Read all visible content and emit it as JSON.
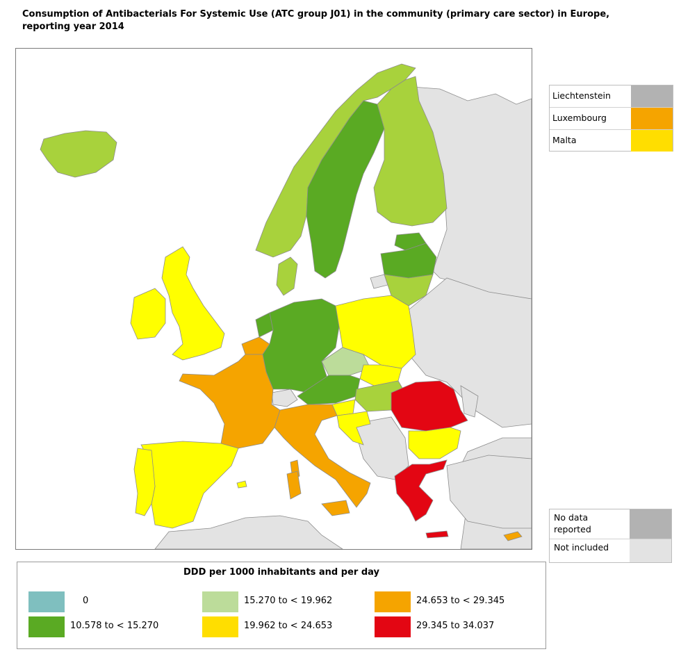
{
  "title": "Consumption of Antibacterials For Systemic Use (ATC group J01) in the community (primary care sector) in Europe, reporting year 2014",
  "colors": {
    "water": "#ffffff",
    "not_included": "#e3e3e3",
    "no_data": "#b2b2b2",
    "c0": "#7fbfbf",
    "c1": "#5aaa23",
    "c2": "#a8d23c",
    "c3": "#ffff00",
    "c4": "#f5a400",
    "c5": "#e30613",
    "border": "#8c8c8c"
  },
  "small_countries": [
    {
      "name": "Liechtenstein",
      "color": "#b2b2b2"
    },
    {
      "name": "Luxembourg",
      "color": "#f5a400"
    },
    {
      "name": "Malta",
      "color": "#ffde00"
    }
  ],
  "status_legend": [
    {
      "label": "No data reported",
      "color": "#b2b2b2"
    },
    {
      "label": "Not included",
      "color": "#e3e3e3"
    }
  ],
  "legend": {
    "title": "DDD per 1000 inhabitants and per day",
    "items": [
      {
        "label": "0",
        "color": "#7fbfbf"
      },
      {
        "label": "10.578 to < 15.270",
        "color": "#5aaa23"
      },
      {
        "label": "15.270 to < 19.962",
        "color": "#bcdc9a"
      },
      {
        "label": "19.962 to < 24.653",
        "color": "#ffde00"
      },
      {
        "label": "24.653 to < 29.345",
        "color": "#f5a400"
      },
      {
        "label": "29.345 to 34.037",
        "color": "#e30613"
      }
    ]
  },
  "countries": [
    {
      "name": "Iceland",
      "class": 2
    },
    {
      "name": "Norway",
      "class": 2
    },
    {
      "name": "Sweden",
      "class": 1
    },
    {
      "name": "Finland",
      "class": 2
    },
    {
      "name": "Estonia",
      "class": 1
    },
    {
      "name": "Latvia",
      "class": 1
    },
    {
      "name": "Lithuania",
      "class": 2
    },
    {
      "name": "Denmark",
      "class": 2
    },
    {
      "name": "Ireland",
      "class": 3
    },
    {
      "name": "United Kingdom",
      "class": 3
    },
    {
      "name": "Netherlands",
      "class": 1
    },
    {
      "name": "Germany",
      "class": 1
    },
    {
      "name": "Poland",
      "class": 3
    },
    {
      "name": "Czech Republic",
      "class": 2
    },
    {
      "name": "Slovakia",
      "class": 3
    },
    {
      "name": "Austria",
      "class": 1
    },
    {
      "name": "Hungary",
      "class": 2
    },
    {
      "name": "Slovenia",
      "class": 3
    },
    {
      "name": "Croatia",
      "class": 3
    },
    {
      "name": "Romania",
      "class": 5
    },
    {
      "name": "Bulgaria",
      "class": 3
    },
    {
      "name": "Greece",
      "class": 5
    },
    {
      "name": "Cyprus",
      "class": 4
    },
    {
      "name": "France",
      "class": 4
    },
    {
      "name": "Belgium",
      "class": 4
    },
    {
      "name": "Italy",
      "class": 4
    },
    {
      "name": "Spain",
      "class": 3
    },
    {
      "name": "Portugal",
      "class": 3
    }
  ]
}
